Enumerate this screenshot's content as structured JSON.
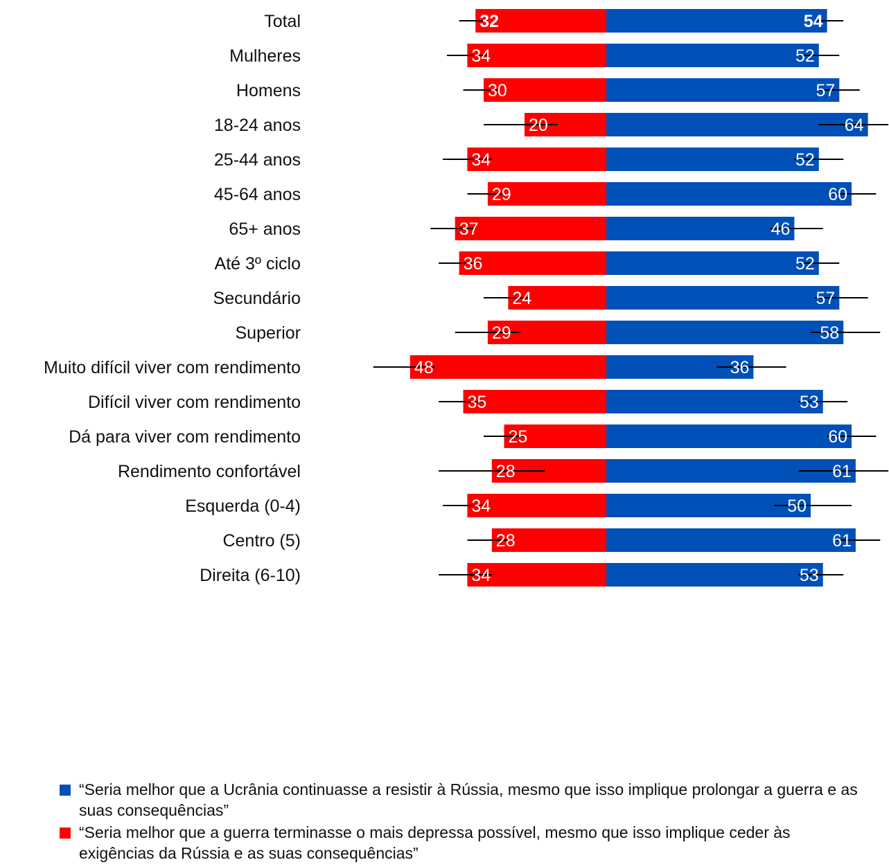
{
  "chart_data": {
    "type": "bar",
    "orientation": "horizontal-diverging",
    "categories": [
      "Total",
      "Mulheres",
      "Homens",
      "18-24 anos",
      "25-44 anos",
      "45-64 anos",
      "65+ anos",
      "Até 3º ciclo",
      "Secundário",
      "Superior",
      "Muito difícil viver com rendimento",
      "Difícil viver com rendimento",
      "Dá para viver com rendimento",
      "Rendimento confortável",
      "Esquerda (0-4)",
      "Centro (5)",
      "Direita (6-10)"
    ],
    "groups": [
      [
        0
      ],
      [
        1,
        2
      ],
      [
        3,
        4,
        5,
        6
      ],
      [
        7,
        8,
        9
      ],
      [
        10,
        11,
        12,
        13
      ],
      [
        14,
        15,
        16
      ]
    ],
    "series": [
      {
        "key": "end_war",
        "color": "#ff0000",
        "direction": "left",
        "values": [
          32,
          34,
          30,
          20,
          34,
          29,
          37,
          36,
          24,
          29,
          48,
          35,
          25,
          28,
          34,
          28,
          34
        ],
        "ci_low": [
          29,
          29,
          26,
          12,
          28,
          25,
          32,
          31,
          19,
          21,
          42,
          30,
          20,
          15,
          30,
          24,
          28
        ],
        "ci_high": [
          36,
          39,
          35,
          30,
          40,
          34,
          43,
          41,
          30,
          37,
          57,
          41,
          30,
          41,
          40,
          34,
          41
        ]
      },
      {
        "key": "resist",
        "color": "#0050b8",
        "direction": "right",
        "values": [
          54,
          52,
          57,
          64,
          52,
          60,
          46,
          52,
          57,
          58,
          36,
          53,
          60,
          61,
          50,
          61,
          53
        ],
        "ci_low": [
          51,
          47,
          52,
          52,
          46,
          55,
          40,
          47,
          51,
          50,
          27,
          47,
          54,
          47,
          41,
          56,
          47
        ],
        "ci_high": [
          58,
          57,
          62,
          69,
          58,
          66,
          53,
          57,
          64,
          67,
          44,
          59,
          66,
          69,
          60,
          67,
          58
        ]
      }
    ],
    "bold_rows": [
      0
    ],
    "xlim": [
      -58,
      70
    ],
    "grid": false
  },
  "legend": {
    "resist": "“Seria melhor que a Ucrânia continuasse a resistir à Rússia, mesmo que isso implique prolongar a guerra e as suas consequências”",
    "end_war": "“Seria melhor que a guerra terminasse o mais depressa possível, mesmo que isso implique ceder às exigências da Rússia e as suas consequências”"
  }
}
